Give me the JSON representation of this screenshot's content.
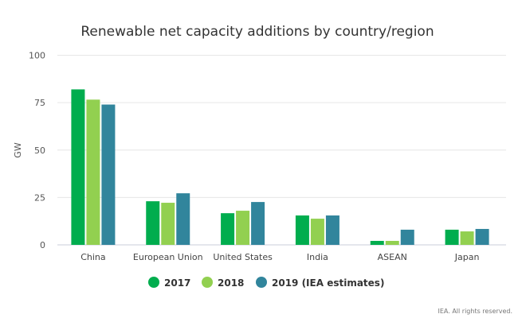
{
  "chart_data": {
    "type": "bar",
    "title": "Renewable net capacity additions by country/region",
    "xlabel": "",
    "ylabel": "GW",
    "ylim": [
      0,
      100
    ],
    "yticks": [
      0,
      25,
      50,
      75,
      100
    ],
    "grid": true,
    "legend_position": "bottom",
    "categories": [
      "China",
      "European Union",
      "United States",
      "India",
      "ASEAN",
      "Japan"
    ],
    "series": [
      {
        "name": "2017",
        "color": "#00ad4e",
        "values": [
          82,
          23,
          16.7,
          15.5,
          2.1,
          8
        ]
      },
      {
        "name": "2018",
        "color": "#92d050",
        "values": [
          76.6,
          22.2,
          18,
          13.8,
          2.1,
          7.1
        ]
      },
      {
        "name": "2019 (IEA estimates)",
        "color": "#31859c",
        "values": [
          74,
          27.2,
          22.6,
          15.5,
          8,
          8.4
        ]
      }
    ],
    "source": "IEA. All rights reserved."
  }
}
